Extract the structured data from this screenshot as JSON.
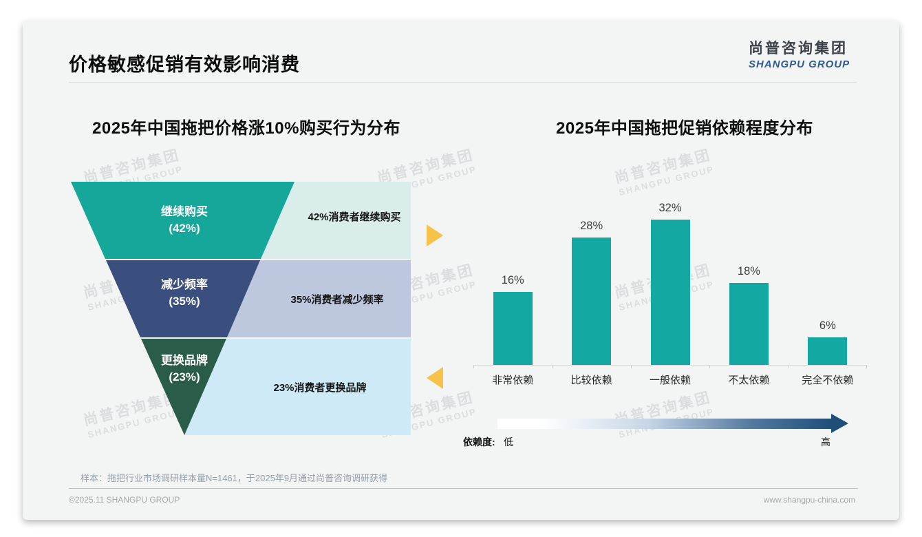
{
  "slide": {
    "title": "价格敏感促销有效影响消费",
    "logo": {
      "name_cn": "尚普咨询集团",
      "name_en": "SHANGPU GROUP",
      "en_color": "#2d5c95"
    },
    "watermark": {
      "line1": "尚普咨询集团",
      "line2": "SHANGPU GROUP"
    },
    "note": "样本：拖把行业市场调研样本量N=1461，于2025年9月通过尚普咨询调研获得",
    "footer": {
      "left": "©2025.11 SHANGPU GROUP",
      "right": "www.shangpu-china.com"
    }
  },
  "chart_data": [
    {
      "type": "funnel",
      "title": "2025年中国拖把价格涨10%购买行为分布",
      "categories": [
        "继续购买",
        "减少频率",
        "更换品牌"
      ],
      "values": [
        42,
        35,
        23
      ],
      "value_labels": [
        "(42%)",
        "(35%)",
        "(23%)"
      ],
      "descriptions": [
        "42%消费者继续购买",
        "35%消费者减少频率",
        "23%消费者更换品牌"
      ],
      "segment_colors": [
        "#14a79a",
        "#3a4f7d",
        "#295c49"
      ],
      "desc_bg_colors": [
        "#d9eeeb",
        "#bdc8de",
        "#cdeaf6"
      ],
      "accent_arrow_color": "#f6c24a"
    },
    {
      "type": "bar",
      "title": "2025年中国拖把促销依赖程度分布",
      "categories": [
        "非常依赖",
        "比较依赖",
        "一般依赖",
        "不太依赖",
        "完全不依赖"
      ],
      "values": [
        16,
        28,
        32,
        18,
        6
      ],
      "value_labels": [
        "16%",
        "28%",
        "32%",
        "18%",
        "6%"
      ],
      "ylim": [
        0,
        35
      ],
      "grid": false,
      "legend": "none",
      "bar_color": "#14a8a2",
      "axis_annotation": {
        "label": "依赖度:",
        "low": "低",
        "high": "高"
      },
      "gradient": {
        "from": "#ffffff",
        "to": "#1f4e79"
      }
    }
  ]
}
